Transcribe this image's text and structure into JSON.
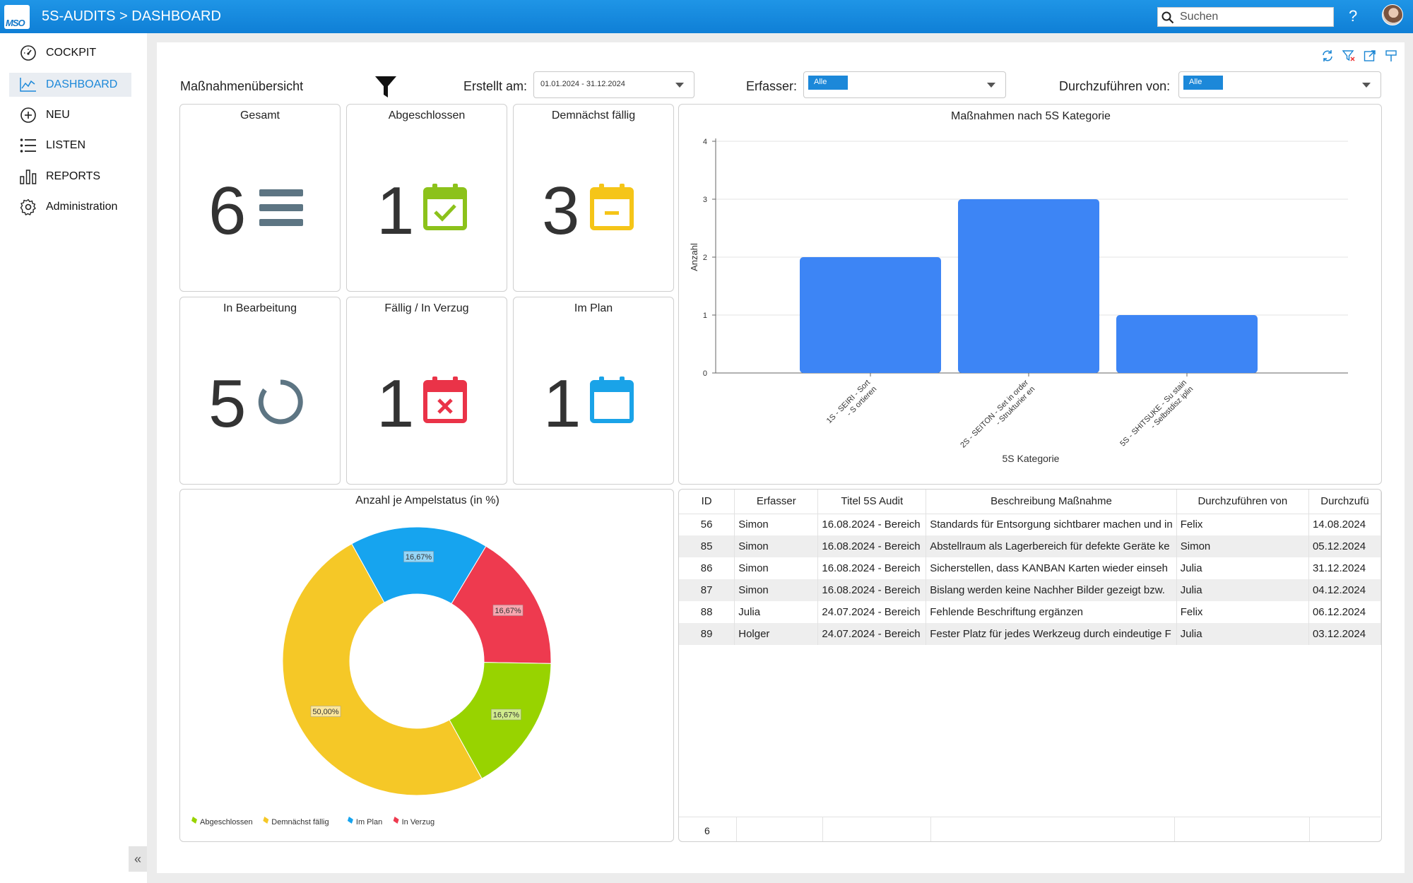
{
  "header": {
    "logo_text": "MSO",
    "title": "5S-AUDITS > DASHBOARD",
    "search_placeholder": "Suchen",
    "help_label": "?"
  },
  "sidebar": {
    "items": [
      {
        "label": "COCKPIT",
        "icon": "gauge-icon"
      },
      {
        "label": "DASHBOARD",
        "icon": "line-chart-icon",
        "active": true
      },
      {
        "label": "NEU",
        "icon": "plus-circle-icon"
      },
      {
        "label": "LISTEN",
        "icon": "list-icon"
      },
      {
        "label": "REPORTS",
        "icon": "bar-chart-icon"
      },
      {
        "label": "Administration",
        "icon": "gear-icon"
      }
    ],
    "collapse_label": "«"
  },
  "filters": {
    "title": "Maßnahmenübersicht",
    "created_label": "Erstellt am:",
    "created_value": "01.01.2024 - 31.12.2024",
    "author_label": "Erfasser:",
    "author_value": "Alle",
    "assignee_label": "Durchzuführen von:",
    "assignee_value": "Alle"
  },
  "kpis": [
    {
      "title": "Gesamt",
      "value": "6",
      "icon": "menu-lines-icon",
      "color": "#5d7583"
    },
    {
      "title": "Abgeschlossen",
      "value": "1",
      "icon": "calendar-check-icon",
      "color": "#8cc21b"
    },
    {
      "title": "Demnächst fällig",
      "value": "3",
      "icon": "calendar-minus-icon",
      "color": "#f5c518"
    },
    {
      "title": "In Bearbeitung",
      "value": "5",
      "icon": "progress-ring-icon",
      "color": "#5d7583"
    },
    {
      "title": "Fällig / In Verzug",
      "value": "1",
      "icon": "calendar-x-icon",
      "color": "#ea3348"
    },
    {
      "title": "Im Plan",
      "value": "1",
      "icon": "calendar-icon",
      "color": "#1aa3e8"
    }
  ],
  "chart_data": [
    {
      "type": "bar",
      "title": "Maßnahmen nach 5S Kategorie",
      "xlabel": "5S Kategorie",
      "ylabel": "Anzahl",
      "categories": [
        "1S - SEIRI - Sort - S ortieren",
        "2S - SEITON - Set in order - Strukturier en",
        "5S - SHITSUKE - Su stain - Selbstdisz iplin"
      ],
      "values": [
        2,
        3,
        1
      ],
      "ylim": [
        0,
        4
      ],
      "yticks": [
        "0",
        "1",
        "2",
        "3",
        "4"
      ],
      "grid": true,
      "color": "#3d85f5"
    },
    {
      "type": "pie",
      "title": "Anzahl je Ampelstatus (in %)",
      "donut": true,
      "slices": [
        {
          "name": "In Verzug",
          "value": 16.67,
          "label": "16,67%",
          "color": "#ee3a4f"
        },
        {
          "name": "Abgeschlossen",
          "value": 16.67,
          "label": "16,67%",
          "color": "#98d300"
        },
        {
          "name": "Demnächst fällig",
          "value": 50.0,
          "label": "50,00%",
          "color": "#f5c827"
        },
        {
          "name": "Im Plan",
          "value": 16.67,
          "label": "16,67%",
          "color": "#16a4ef"
        }
      ],
      "legend": [
        "Abgeschlossen",
        "Demnächst fällig",
        "Im Plan",
        "In Verzug"
      ],
      "legend_placement": "bottom-left"
    }
  ],
  "table": {
    "columns": [
      "ID",
      "Erfasser",
      "Titel 5S Audit",
      "Beschreibung Maßnahme",
      "Durchzuführen von",
      "Durchzufü"
    ],
    "rows": [
      [
        "56",
        "Simon",
        "16.08.2024 - Bereich",
        "Standards für Entsorgung sichtbarer machen und in",
        "Felix",
        "14.08.2024"
      ],
      [
        "85",
        "Simon",
        "16.08.2024 - Bereich",
        "Abstellraum als Lagerbereich für defekte Geräte ke",
        "Simon",
        "05.12.2024"
      ],
      [
        "86",
        "Simon",
        "16.08.2024 - Bereich",
        "Sicherstellen, dass KANBAN Karten wieder einseh",
        "Julia",
        "31.12.2024"
      ],
      [
        "87",
        "Simon",
        "16.08.2024 - Bereich",
        "Bislang werden keine Nachher Bilder gezeigt bzw.",
        "Julia",
        "04.12.2024"
      ],
      [
        "88",
        "Julia",
        "24.07.2024 - Bereich",
        "Fehlende Beschriftung ergänzen",
        "Felix",
        "06.12.2024"
      ],
      [
        "89",
        "Holger",
        "24.07.2024 - Bereich",
        "Fester Platz für jedes Werkzeug durch eindeutige F",
        "Julia",
        "03.12.2024"
      ]
    ],
    "footer_count": "6"
  }
}
